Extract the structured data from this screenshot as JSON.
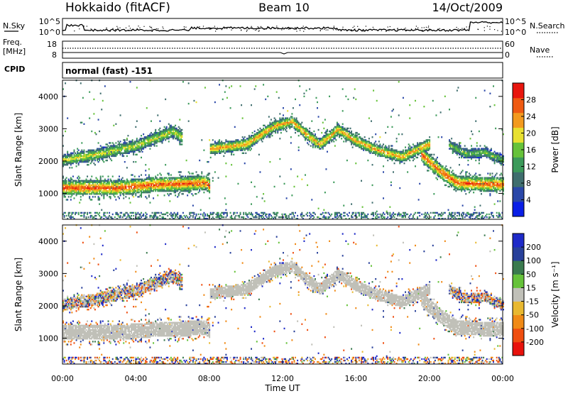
{
  "header": {
    "radar": "Hokkaido (fitACF)",
    "beam": "Beam 10",
    "date": "14/Oct/2009"
  },
  "noise_panel": {
    "left_label": "N.Sky",
    "right_label": "N.Search",
    "left_ticks": [
      "10^5",
      "10^0"
    ],
    "right_ticks": [
      "10^5",
      "10^0"
    ]
  },
  "freq_panel": {
    "left_label_1": "Freq.",
    "left_label_2": "[MHz]",
    "left_ticks": [
      "18",
      "8"
    ],
    "right_label": "Nave",
    "right_ticks": [
      "60",
      "0"
    ]
  },
  "cpid": {
    "label": "CPID",
    "value": "normal (fast) -151"
  },
  "colors": {
    "power_scale": [
      "#0a1ee6",
      "#2a47a8",
      "#3f6e6e",
      "#3c9a5a",
      "#66c23a",
      "#e8e030",
      "#f39a1e",
      "#ef5a12",
      "#e8160e"
    ],
    "velocity_scale": [
      "#1e2ac8",
      "#28409a",
      "#3a7a4e",
      "#66c23a",
      "#c0c0b8",
      "#e8b830",
      "#f08a16",
      "#ef4e10",
      "#e8120c"
    ]
  },
  "chart_data": [
    {
      "type": "heatmap",
      "panel": "power",
      "ylabel": "Slant Range [km]",
      "yticks": [
        "1000",
        "2000",
        "3000",
        "4000"
      ],
      "ylim": [
        200,
        4500
      ],
      "xlim": [
        0,
        24
      ],
      "colorbar": {
        "label": "Power [dB]",
        "ticks": [
          "4",
          "8",
          "12",
          "16",
          "20",
          "24",
          "28"
        ],
        "range": [
          0,
          32
        ]
      },
      "features": [
        {
          "name": "near-range band",
          "t": [
            0,
            8
          ],
          "range_km": [
            850,
            1450
          ],
          "power_db": 28
        },
        {
          "name": "rising 1-hop band",
          "t": [
            8,
            12
          ],
          "range_km": [
            2300,
            3250
          ],
          "power_db": 24
        },
        {
          "name": "far band",
          "t": [
            14,
            19
          ],
          "range_km": [
            1900,
            2600
          ],
          "power_db": 28
        },
        {
          "name": "late near band",
          "t": [
            20.5,
            24
          ],
          "range_km": [
            900,
            1500
          ],
          "power_db": 28
        }
      ]
    },
    {
      "type": "heatmap",
      "panel": "velocity",
      "ylabel": "Slant Range [km]",
      "yticks": [
        "1000",
        "2000",
        "3000",
        "4000"
      ],
      "ylim": [
        200,
        4500
      ],
      "xlim": [
        0,
        24
      ],
      "xlabel": "Time UT",
      "xticks": [
        "00:00",
        "04:00",
        "08:00",
        "12:00",
        "16:00",
        "20:00",
        "00:00"
      ],
      "colorbar": {
        "label": "Velocity [m s⁻¹]",
        "ticks": [
          "200",
          "100",
          "50",
          "15",
          "-15",
          "-50",
          "-100",
          "-200"
        ],
        "range": [
          -250,
          250
        ]
      },
      "features": [
        {
          "name": "ground scatter near band",
          "t": [
            0,
            8
          ],
          "range_km": [
            850,
            1450
          ],
          "velocity": 0
        },
        {
          "name": "ground scatter far band",
          "t": [
            8,
            19
          ],
          "range_km": [
            2000,
            3250
          ],
          "velocity": 0
        }
      ]
    }
  ]
}
